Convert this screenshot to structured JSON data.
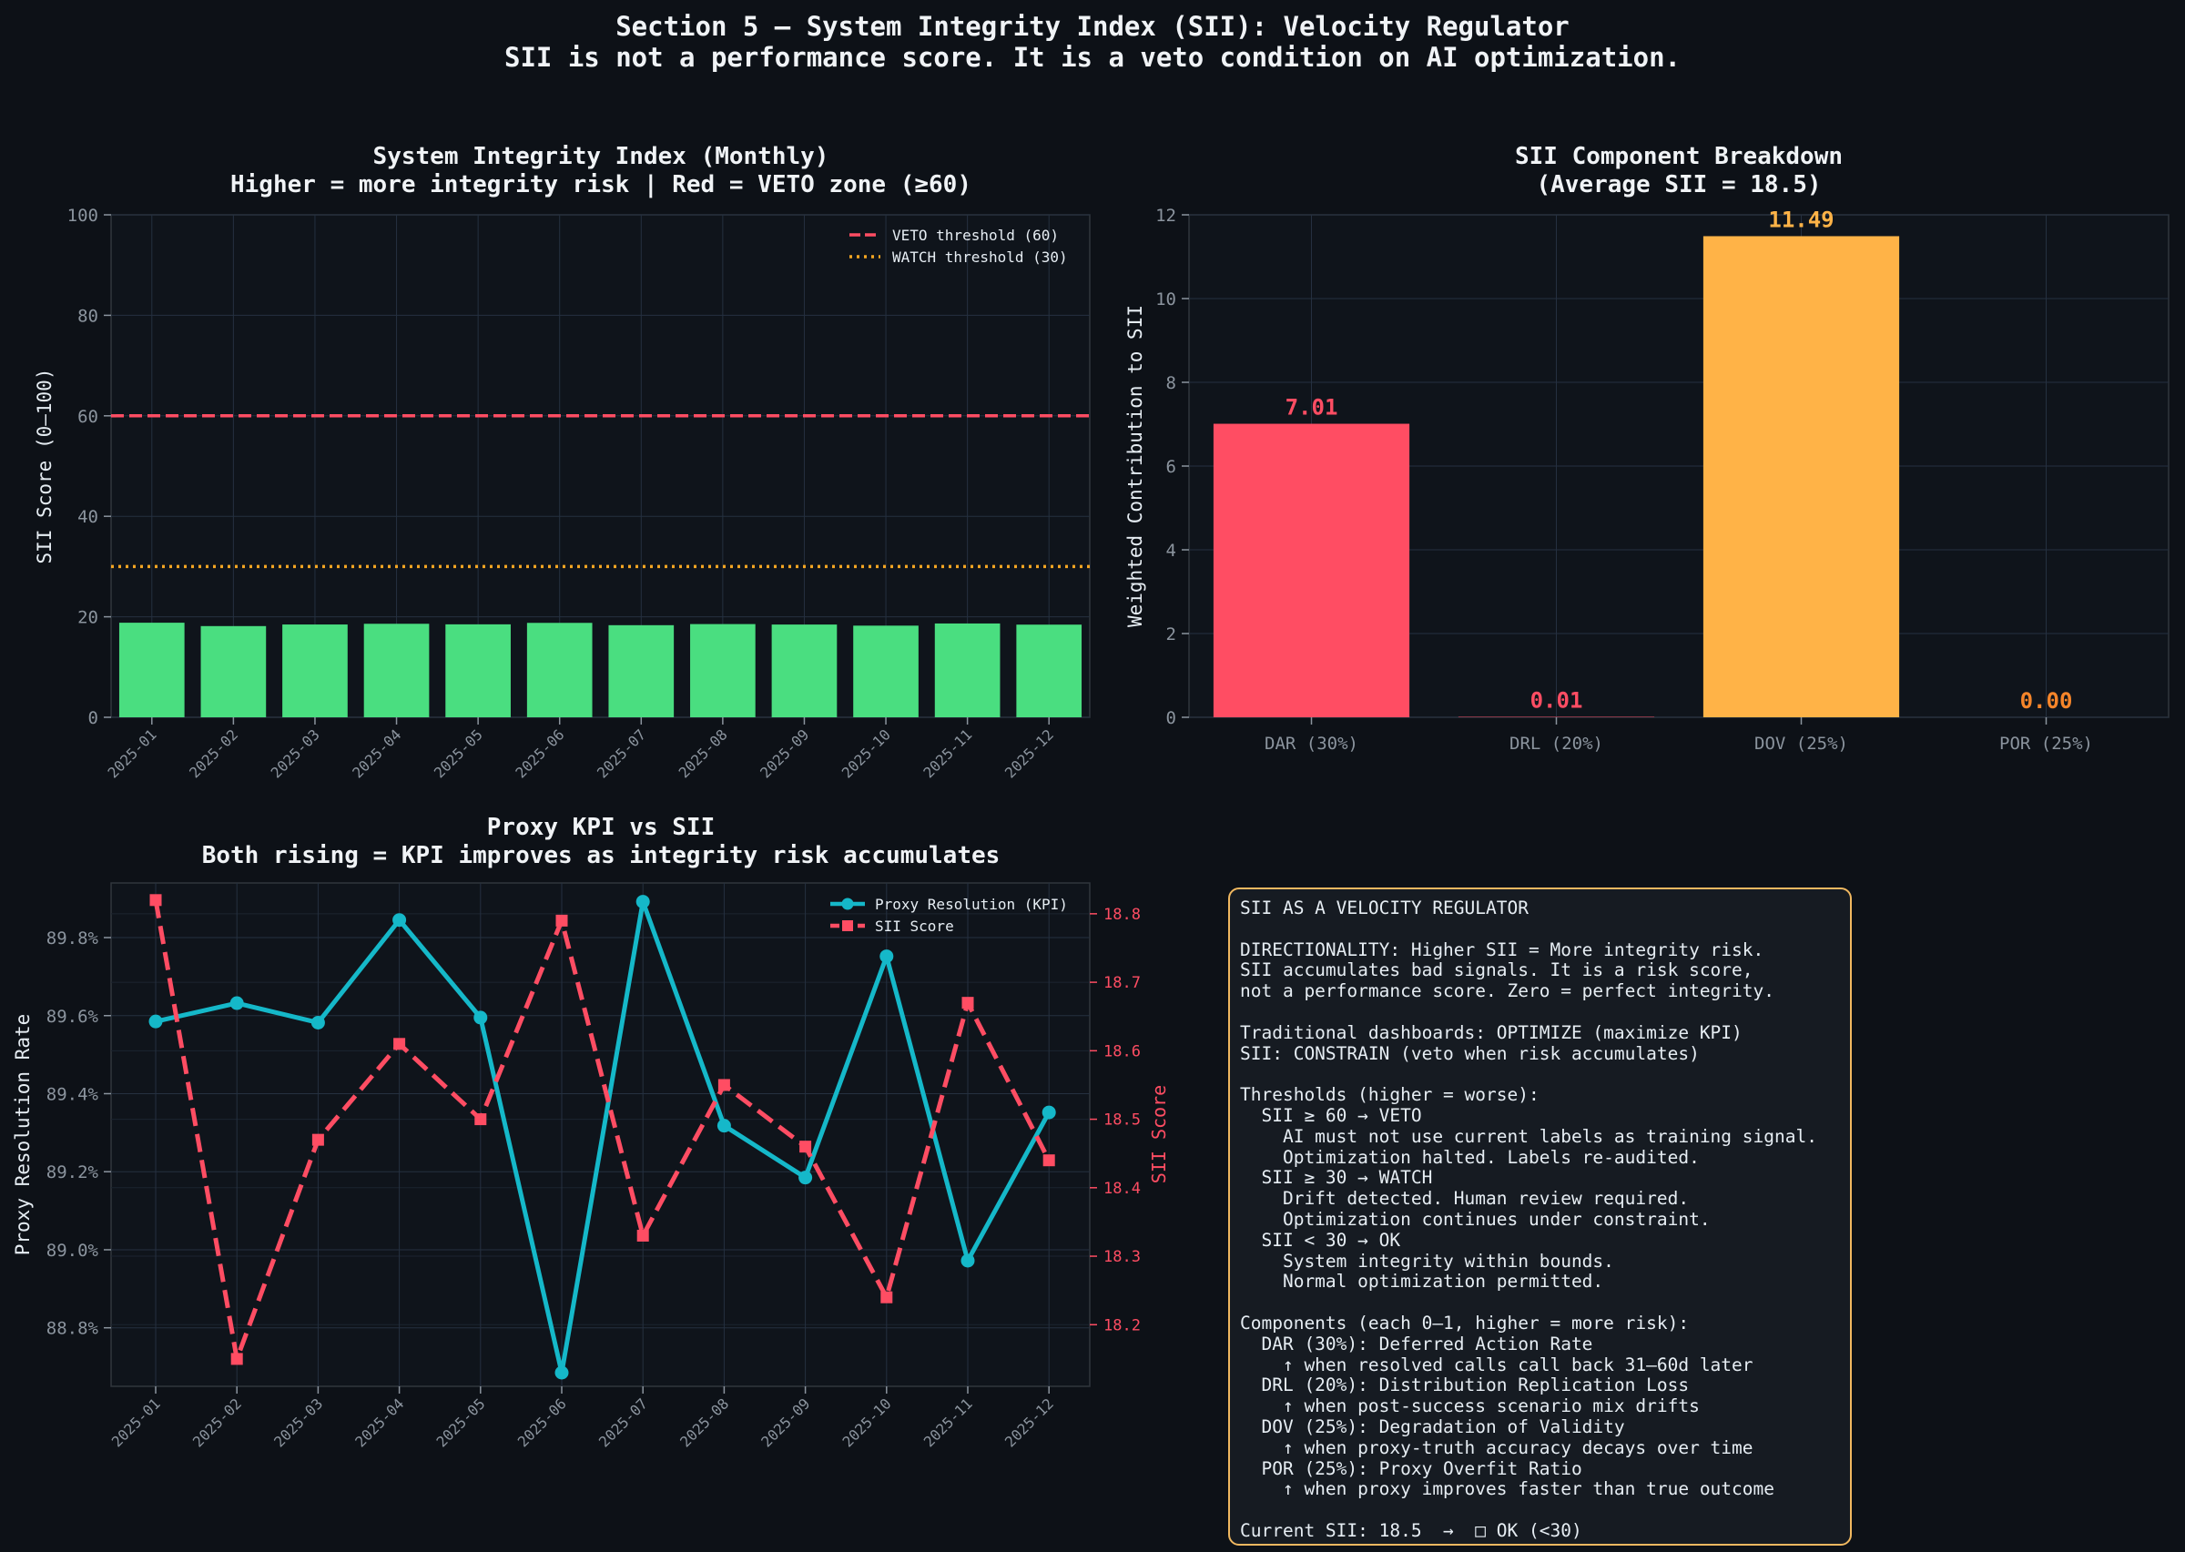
{
  "suptitle": {
    "line1": "Section 5 — System Integrity Index (SII): Velocity Regulator",
    "line2": "SII is not a performance score. It is a veto condition on AI optimization."
  },
  "colors": {
    "background": "#0d1117",
    "panel": "#0f141b",
    "green": "#4ade80",
    "red": "#ff4d63",
    "orange": "#ffb347",
    "cyan": "#15b8c9",
    "text": "#e6edf3",
    "muted": "#8b949e"
  },
  "chart_data": [
    {
      "type": "bar",
      "title": "System Integrity Index (Monthly)",
      "subtitle": "Higher = more integrity risk | Red = VETO zone (≥60)",
      "xlabel": "",
      "ylabel": "SII Score (0–100)",
      "ylim": [
        0,
        100
      ],
      "yticks": [
        0,
        20,
        40,
        60,
        80,
        100
      ],
      "grid": true,
      "legend_position": "top-right",
      "categories": [
        "2025-01",
        "2025-02",
        "2025-03",
        "2025-04",
        "2025-05",
        "2025-06",
        "2025-07",
        "2025-08",
        "2025-09",
        "2025-10",
        "2025-11",
        "2025-12"
      ],
      "values": [
        18.82,
        18.15,
        18.47,
        18.61,
        18.5,
        18.79,
        18.33,
        18.55,
        18.46,
        18.24,
        18.67,
        18.44
      ],
      "bar_color": "#4ade80",
      "thresholds": [
        {
          "name": "VETO threshold (60)",
          "value": 60,
          "color": "#ff4d63",
          "style": "dashed"
        },
        {
          "name": "WATCH threshold (30)",
          "value": 30,
          "color": "#f5a623",
          "style": "dotted"
        }
      ]
    },
    {
      "type": "bar",
      "title": "SII Component Breakdown",
      "subtitle": "(Average SII = 18.5)",
      "xlabel": "",
      "ylabel": "Weighted Contribution to SII",
      "ylim": [
        0,
        12
      ],
      "yticks": [
        0,
        2,
        4,
        6,
        8,
        10,
        12
      ],
      "grid": true,
      "categories": [
        "DAR (30%)",
        "DRL (20%)",
        "DOV (25%)",
        "POR (25%)"
      ],
      "values": [
        7.01,
        0.01,
        11.49,
        0.0
      ],
      "labels": [
        "7.01",
        "0.01",
        "11.49",
        "0.00"
      ],
      "bar_colors": [
        "#ff4d63",
        "#ff4d63",
        "#ffb347",
        "#ffb347"
      ],
      "label_colors": [
        "#ff4d63",
        "#ff4d63",
        "#ffb347",
        "#f5852a"
      ]
    },
    {
      "type": "line",
      "title": "Proxy KPI vs SII",
      "subtitle": "Both rising = KPI improves as integrity risk accumulates",
      "xlabel": "",
      "ylabel": "Proxy Resolution Rate",
      "ylabel_right": "SII Score",
      "x": [
        "2025-01",
        "2025-02",
        "2025-03",
        "2025-04",
        "2025-05",
        "2025-06",
        "2025-07",
        "2025-08",
        "2025-09",
        "2025-10",
        "2025-11",
        "2025-12"
      ],
      "ylim": [
        88.65,
        89.94
      ],
      "yticks": [
        88.8,
        89.0,
        89.2,
        89.4,
        89.6,
        89.8
      ],
      "ytick_labels": [
        "88.8%",
        "89.0%",
        "89.2%",
        "89.4%",
        "89.6%",
        "89.8%"
      ],
      "ylim_right": [
        18.11,
        18.845
      ],
      "yticks_right": [
        18.2,
        18.3,
        18.4,
        18.5,
        18.6,
        18.7,
        18.8
      ],
      "grid": true,
      "legend_position": "top-right",
      "series": [
        {
          "name": "Proxy Resolution (KPI)",
          "axis": "left",
          "color": "#15b8c9",
          "marker": "circle",
          "style": "solid",
          "values": [
            89.585,
            89.632,
            89.582,
            89.845,
            89.595,
            88.685,
            89.892,
            89.318,
            89.185,
            89.752,
            88.972,
            89.352
          ]
        },
        {
          "name": "SII Score",
          "axis": "right",
          "color": "#ff4d63",
          "marker": "square",
          "style": "dashed",
          "values": [
            18.82,
            18.15,
            18.47,
            18.61,
            18.5,
            18.79,
            18.33,
            18.55,
            18.46,
            18.24,
            18.67,
            18.44
          ]
        }
      ]
    }
  ],
  "info_panel": {
    "lines": [
      "SII AS A VELOCITY REGULATOR",
      "",
      "DIRECTIONALITY: Higher SII = More integrity risk.",
      "SII accumulates bad signals. It is a risk score,",
      "not a performance score. Zero = perfect integrity.",
      "",
      "Traditional dashboards: OPTIMIZE (maximize KPI)",
      "SII: CONSTRAIN (veto when risk accumulates)",
      "",
      "Thresholds (higher = worse):",
      "  SII ≥ 60 → VETO",
      "    AI must not use current labels as training signal.",
      "    Optimization halted. Labels re-audited.",
      "  SII ≥ 30 → WATCH",
      "    Drift detected. Human review required.",
      "    Optimization continues under constraint.",
      "  SII < 30 → OK",
      "    System integrity within bounds.",
      "    Normal optimization permitted.",
      "",
      "Components (each 0–1, higher = more risk):",
      "  DAR (30%): Deferred Action Rate",
      "    ↑ when resolved calls call back 31–60d later",
      "  DRL (20%): Distribution Replication Loss",
      "    ↑ when post-success scenario mix drifts",
      "  DOV (25%): Degradation of Validity",
      "    ↑ when proxy-truth accuracy decays over time",
      "  POR (25%): Proxy Overfit Ratio",
      "    ↑ when proxy improves faster than true outcome",
      "",
      "Current SII: 18.5  →  □ OK (<30)"
    ]
  }
}
